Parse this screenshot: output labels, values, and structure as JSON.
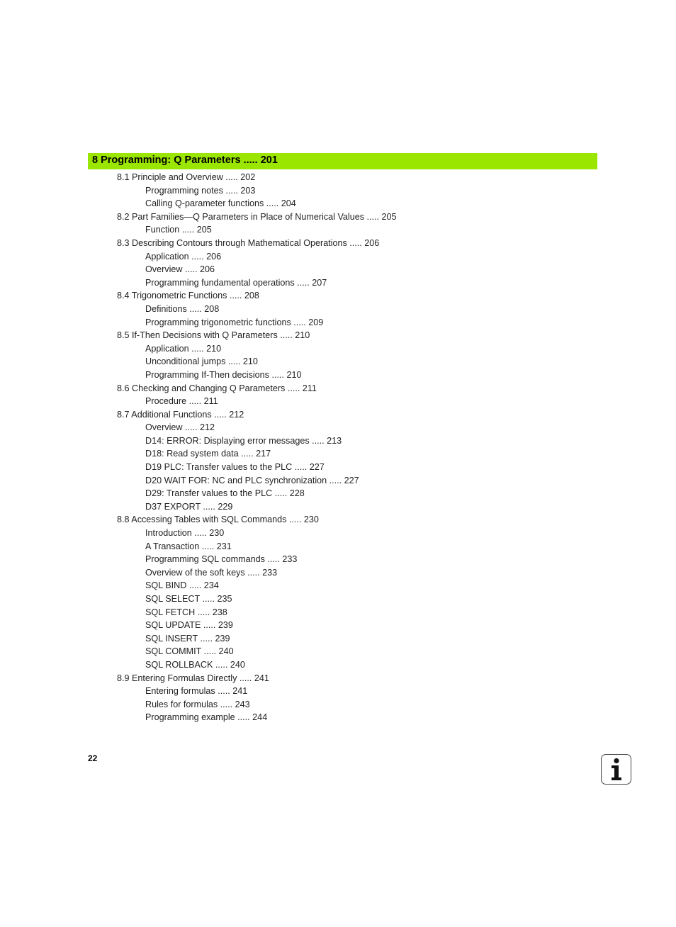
{
  "chapter": {
    "title": "8 Programming: Q Parameters ..... 201"
  },
  "entries": [
    {
      "level": 1,
      "text": "8.1 Principle and Overview ..... 202"
    },
    {
      "level": 2,
      "text": "Programming notes ..... 203"
    },
    {
      "level": 2,
      "text": "Calling Q-parameter functions ..... 204"
    },
    {
      "level": 1,
      "text": "8.2 Part Families—Q Parameters in Place of Numerical Values ..... 205"
    },
    {
      "level": 2,
      "text": "Function ..... 205"
    },
    {
      "level": 1,
      "text": "8.3 Describing Contours through Mathematical Operations ..... 206"
    },
    {
      "level": 2,
      "text": "Application ..... 206"
    },
    {
      "level": 2,
      "text": "Overview ..... 206"
    },
    {
      "level": 2,
      "text": "Programming fundamental operations ..... 207"
    },
    {
      "level": 1,
      "text": "8.4 Trigonometric Functions ..... 208"
    },
    {
      "level": 2,
      "text": "Definitions ..... 208"
    },
    {
      "level": 2,
      "text": "Programming trigonometric functions ..... 209"
    },
    {
      "level": 1,
      "text": "8.5 If-Then Decisions with Q Parameters ..... 210"
    },
    {
      "level": 2,
      "text": "Application ..... 210"
    },
    {
      "level": 2,
      "text": "Unconditional jumps ..... 210"
    },
    {
      "level": 2,
      "text": "Programming If-Then decisions ..... 210"
    },
    {
      "level": 1,
      "text": "8.6 Checking and Changing Q Parameters ..... 211"
    },
    {
      "level": 2,
      "text": "Procedure ..... 211"
    },
    {
      "level": 1,
      "text": "8.7 Additional Functions ..... 212"
    },
    {
      "level": 2,
      "text": "Overview ..... 212"
    },
    {
      "level": 2,
      "text": "D14: ERROR: Displaying error messages ..... 213"
    },
    {
      "level": 2,
      "text": "D18: Read system data ..... 217"
    },
    {
      "level": 2,
      "text": "D19 PLC: Transfer values to the PLC ..... 227"
    },
    {
      "level": 2,
      "text": "D20 WAIT FOR: NC and PLC synchronization ..... 227"
    },
    {
      "level": 2,
      "text": "D29: Transfer values to the PLC ..... 228"
    },
    {
      "level": 2,
      "text": "D37 EXPORT ..... 229"
    },
    {
      "level": 1,
      "text": "8.8 Accessing Tables with SQL Commands ..... 230"
    },
    {
      "level": 2,
      "text": "Introduction ..... 230"
    },
    {
      "level": 2,
      "text": "A Transaction ..... 231"
    },
    {
      "level": 2,
      "text": "Programming SQL commands ..... 233"
    },
    {
      "level": 2,
      "text": "Overview of the soft keys ..... 233"
    },
    {
      "level": 2,
      "text": "SQL BIND ..... 234"
    },
    {
      "level": 2,
      "text": "SQL SELECT ..... 235"
    },
    {
      "level": 2,
      "text": "SQL FETCH ..... 238"
    },
    {
      "level": 2,
      "text": "SQL UPDATE ..... 239"
    },
    {
      "level": 2,
      "text": "SQL INSERT ..... 239"
    },
    {
      "level": 2,
      "text": "SQL COMMIT ..... 240"
    },
    {
      "level": 2,
      "text": "SQL ROLLBACK ..... 240"
    },
    {
      "level": 1,
      "text": "8.9 Entering Formulas Directly ..... 241"
    },
    {
      "level": 2,
      "text": "Entering formulas ..... 241"
    },
    {
      "level": 2,
      "text": "Rules for formulas ..... 243"
    },
    {
      "level": 2,
      "text": "Programming example ..... 244"
    }
  ],
  "footer": {
    "page_number": "22",
    "icon": "info-icon"
  },
  "colors": {
    "chapter_bar": "#9be600"
  }
}
